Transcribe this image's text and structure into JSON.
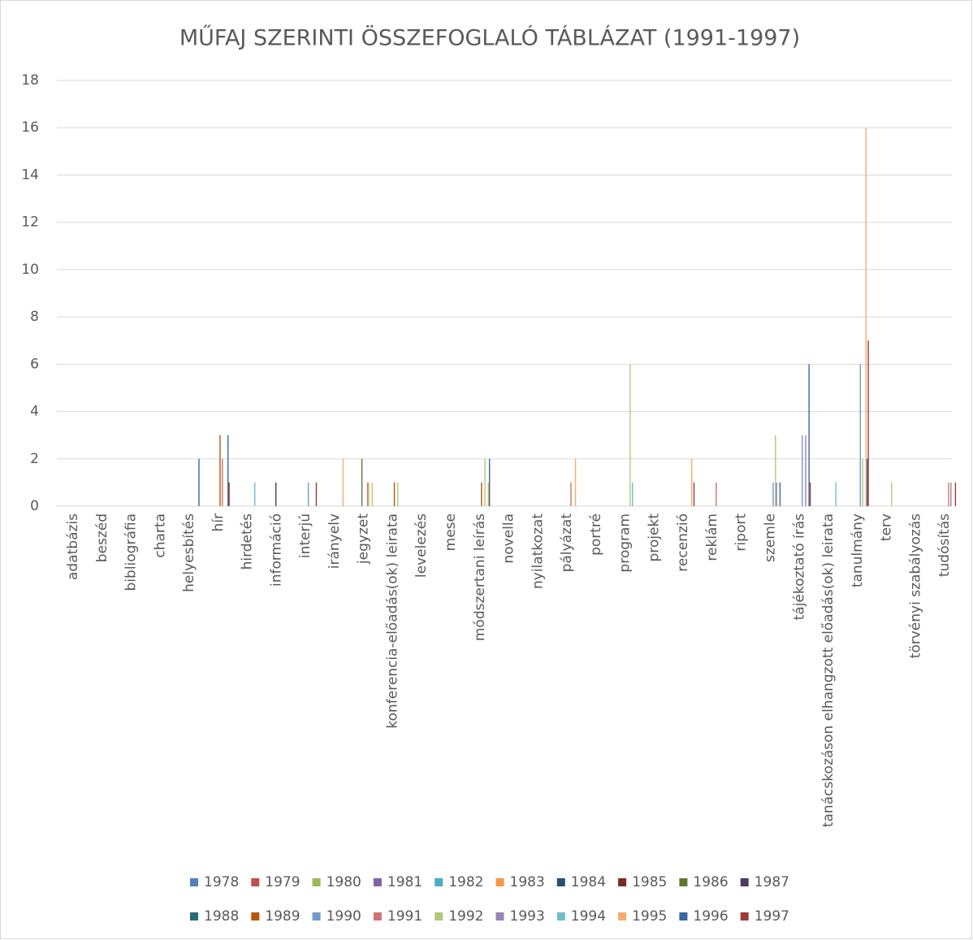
{
  "chart_data": {
    "type": "bar",
    "title": "MŰFAJ SZERINTI ÖSSZEFOGLALÓ TÁBLÁZAT (1991-1997)",
    "categories": [
      "adatbázis",
      "beszéd",
      "bibliográfia",
      "charta",
      "helyesbítés",
      "hír",
      "hirdetés",
      "információ",
      "interjú",
      "irányelv",
      "jegyzet",
      "konferencia-előadás(ok) leirata",
      "levelezés",
      "mese",
      "módszertani leírás",
      "novella",
      "nyilatkozat",
      "pályázat",
      "portré",
      "program",
      "projekt",
      "recenzió",
      "reklám",
      "riport",
      "szemle",
      "tájékoztató írás",
      "tanácskozáson elhangzott előadás(ok) leirata",
      "tanulmány",
      "terv",
      "törvényi szabályozás",
      "tudósítás"
    ],
    "series": [
      {
        "name": "1978",
        "color": "#4f81bd",
        "values": [
          0,
          0,
          0,
          0,
          0,
          0,
          0,
          0,
          0,
          0,
          0,
          0,
          0,
          0,
          0,
          0,
          0,
          0,
          0,
          0,
          0,
          0,
          0,
          0,
          0,
          0,
          0,
          0,
          0,
          0,
          0
        ]
      },
      {
        "name": "1979",
        "color": "#c0504d",
        "values": [
          0,
          0,
          0,
          0,
          0,
          0,
          0,
          0,
          0,
          0,
          0,
          0,
          0,
          0,
          0,
          0,
          0,
          0,
          0,
          0,
          0,
          0,
          0,
          0,
          0,
          0,
          0,
          0,
          0,
          0,
          0
        ]
      },
      {
        "name": "1980",
        "color": "#9bbb59",
        "values": [
          0,
          0,
          0,
          0,
          0,
          0,
          0,
          0,
          0,
          0,
          0,
          0,
          0,
          0,
          0,
          0,
          0,
          0,
          0,
          0,
          0,
          0,
          0,
          0,
          0,
          0,
          0,
          0,
          0,
          0,
          0
        ]
      },
      {
        "name": "1981",
        "color": "#8064a2",
        "values": [
          0,
          0,
          0,
          0,
          0,
          0,
          0,
          0,
          0,
          0,
          0,
          0,
          0,
          0,
          0,
          0,
          0,
          0,
          0,
          0,
          0,
          0,
          0,
          0,
          0,
          0,
          0,
          0,
          0,
          0,
          0
        ]
      },
      {
        "name": "1982",
        "color": "#4bacc6",
        "values": [
          0,
          0,
          0,
          0,
          0,
          0,
          0,
          0,
          0,
          0,
          0,
          0,
          0,
          0,
          0,
          0,
          0,
          0,
          0,
          0,
          0,
          0,
          0,
          0,
          0,
          0,
          0,
          0,
          0,
          0,
          0
        ]
      },
      {
        "name": "1983",
        "color": "#f79646",
        "values": [
          0,
          0,
          0,
          0,
          0,
          0,
          0,
          0,
          0,
          0,
          0,
          0,
          0,
          0,
          0,
          0,
          0,
          0,
          0,
          0,
          0,
          0,
          0,
          0,
          0,
          0,
          0,
          0,
          0,
          0,
          0
        ]
      },
      {
        "name": "1984",
        "color": "#2c4d75",
        "values": [
          0,
          0,
          0,
          0,
          0,
          0,
          0,
          0,
          0,
          0,
          0,
          0,
          0,
          0,
          0,
          0,
          0,
          0,
          0,
          0,
          0,
          0,
          0,
          0,
          0,
          0,
          0,
          0,
          0,
          0,
          0
        ]
      },
      {
        "name": "1985",
        "color": "#772c2a",
        "values": [
          0,
          0,
          0,
          0,
          0,
          0,
          0,
          0,
          0,
          0,
          0,
          0,
          0,
          0,
          0,
          0,
          0,
          0,
          0,
          0,
          0,
          0,
          0,
          0,
          0,
          0,
          0,
          0,
          0,
          0,
          0
        ]
      },
      {
        "name": "1986",
        "color": "#5f7530",
        "values": [
          0,
          0,
          0,
          0,
          0,
          0,
          0,
          0,
          0,
          0,
          2,
          0,
          0,
          0,
          0,
          0,
          0,
          0,
          0,
          0,
          0,
          0,
          0,
          0,
          0,
          0,
          0,
          0,
          0,
          0,
          0
        ]
      },
      {
        "name": "1987",
        "color": "#4d3b62",
        "values": [
          0,
          0,
          0,
          0,
          0,
          0,
          0,
          1,
          0,
          0,
          0,
          0,
          0,
          0,
          0,
          0,
          0,
          0,
          0,
          0,
          0,
          0,
          0,
          0,
          0,
          0,
          0,
          0,
          0,
          0,
          0
        ]
      },
      {
        "name": "1988",
        "color": "#276a7c",
        "values": [
          0,
          0,
          0,
          0,
          0,
          0,
          0,
          0,
          0,
          0,
          0,
          0,
          0,
          0,
          0,
          0,
          0,
          0,
          0,
          0,
          0,
          0,
          0,
          0,
          0,
          0,
          0,
          0,
          0,
          0,
          0
        ]
      },
      {
        "name": "1989",
        "color": "#b65708",
        "values": [
          0,
          0,
          0,
          0,
          0,
          3,
          0,
          0,
          0,
          0,
          0,
          1,
          0,
          0,
          1,
          0,
          0,
          0,
          0,
          0,
          0,
          0,
          0,
          0,
          0,
          0,
          0,
          0,
          0,
          0,
          0
        ]
      },
      {
        "name": "1990",
        "color": "#729aca",
        "values": [
          0,
          0,
          0,
          0,
          0,
          0,
          0,
          0,
          1,
          0,
          0,
          0,
          0,
          0,
          0,
          0,
          0,
          0,
          0,
          0,
          0,
          0,
          0,
          0,
          1,
          3,
          0,
          6,
          0,
          0,
          0
        ]
      },
      {
        "name": "1991",
        "color": "#cd7371",
        "values": [
          0,
          0,
          0,
          0,
          0,
          2,
          0,
          0,
          0,
          0,
          1,
          0,
          0,
          0,
          0,
          0,
          0,
          1,
          0,
          0,
          0,
          0,
          1,
          0,
          0,
          0,
          0,
          0,
          0,
          0,
          1
        ]
      },
      {
        "name": "1992",
        "color": "#afc97a",
        "values": [
          0,
          0,
          0,
          0,
          0,
          0,
          0,
          0,
          0,
          0,
          1,
          1,
          0,
          0,
          2,
          0,
          0,
          0,
          0,
          6,
          0,
          0,
          0,
          0,
          3,
          0,
          0,
          2,
          1,
          0,
          0
        ]
      },
      {
        "name": "1993",
        "color": "#9983b5",
        "values": [
          0,
          0,
          0,
          0,
          0,
          0,
          0,
          0,
          0,
          0,
          0,
          0,
          0,
          0,
          0,
          0,
          0,
          0,
          0,
          0,
          0,
          0,
          0,
          0,
          1,
          3,
          0,
          0,
          0,
          0,
          1
        ]
      },
      {
        "name": "1994",
        "color": "#6fbdd1",
        "values": [
          0,
          0,
          0,
          0,
          0,
          0,
          1,
          0,
          0,
          0,
          0,
          0,
          0,
          0,
          0,
          0,
          0,
          0,
          0,
          1,
          0,
          0,
          0,
          0,
          0,
          0,
          1,
          0,
          0,
          0,
          0
        ]
      },
      {
        "name": "1995",
        "color": "#f9ab6b",
        "values": [
          0,
          0,
          0,
          0,
          0,
          0,
          0,
          0,
          0,
          2,
          1,
          0,
          0,
          0,
          1,
          0,
          0,
          2,
          0,
          0,
          0,
          2,
          0,
          0,
          0,
          0,
          0,
          16,
          0,
          0,
          0
        ]
      },
      {
        "name": "1996",
        "color": "#3a679c",
        "values": [
          0,
          0,
          0,
          0,
          2,
          3,
          0,
          0,
          0,
          0,
          0,
          0,
          0,
          0,
          2,
          0,
          0,
          0,
          0,
          0,
          0,
          0,
          0,
          0,
          1,
          6,
          0,
          2,
          0,
          0,
          0
        ]
      },
      {
        "name": "1997",
        "color": "#9e3a38",
        "values": [
          0,
          0,
          0,
          0,
          0,
          1,
          0,
          0,
          1,
          0,
          0,
          0,
          0,
          0,
          0,
          0,
          0,
          0,
          0,
          0,
          0,
          1,
          0,
          0,
          0,
          1,
          0,
          7,
          0,
          0,
          1
        ]
      }
    ],
    "ylim": [
      0,
      18
    ],
    "yticks": [
      0,
      2,
      4,
      6,
      8,
      10,
      12,
      14,
      16,
      18
    ],
    "grid": true,
    "legend": "bottom"
  }
}
